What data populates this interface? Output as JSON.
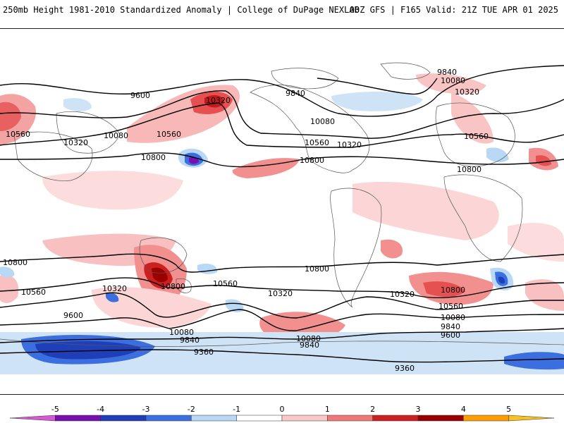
{
  "header": {
    "left": "250mb Height 1981-2010 Standardized Anomaly | College of DuPage NEXLAB",
    "right": "00Z GFS | F165 Valid: 21Z TUE APR 01 2025"
  },
  "contour_labels": [
    "9840",
    "10080",
    "10320",
    "9600",
    "9840",
    "10320",
    "10560",
    "10080",
    "10320",
    "10800",
    "10560",
    "10080",
    "10560",
    "10320",
    "10800",
    "10800",
    "10560",
    "10800",
    "10560",
    "10320",
    "10800",
    "10800",
    "10560",
    "10320",
    "10800",
    "10080",
    "9840",
    "9600",
    "9840",
    "10080",
    "9360",
    "10320",
    "10560",
    "10080",
    "9840",
    "9600",
    "9360"
  ],
  "colorbar": {
    "ticks": [
      "-5",
      "-4",
      "-3",
      "-2",
      "-1",
      "0",
      "1",
      "2",
      "3",
      "4",
      "5"
    ],
    "colors": [
      "#d35ad3",
      "#7a0fb0",
      "#1f3fb8",
      "#3b6fe0",
      "#b9d8f5",
      "#ffffff",
      "#fbc7c7",
      "#f07878",
      "#cc1f1f",
      "#9b0000",
      "#ff9c00",
      "#f8c020"
    ]
  }
}
